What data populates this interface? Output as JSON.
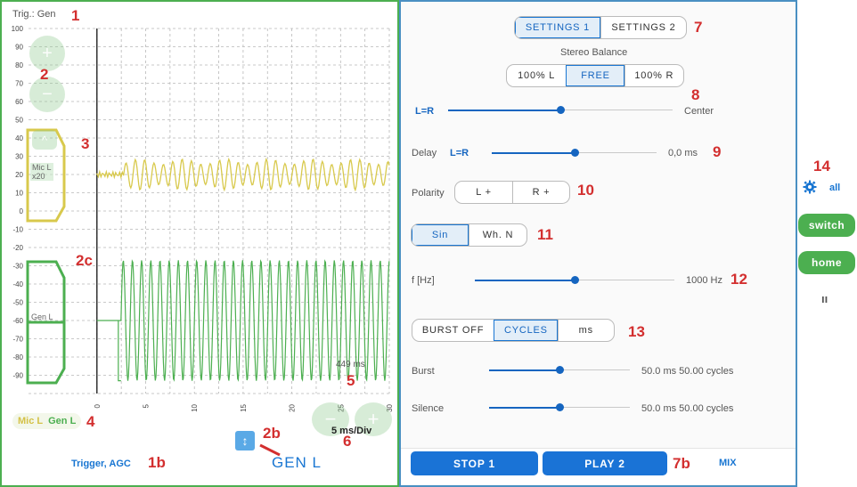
{
  "scope": {
    "trigger_label": "Trig.: Gen",
    "y_ticks": [
      "100",
      "90",
      "80",
      "70",
      "60",
      "50",
      "40",
      "30",
      "20",
      "10",
      "0",
      "-10",
      "-20",
      "-30",
      "-40",
      "-50",
      "-60",
      "-70",
      "-80",
      "-90"
    ],
    "x_ticks": [
      "0",
      "5",
      "10",
      "15",
      "20",
      "25",
      "30"
    ],
    "zoom_plus": "+",
    "zoom_minus": "−",
    "ch1_up": "^",
    "mic_tag_line1": "Mic L",
    "mic_tag_line2": "x20",
    "gen_tag": "Gen L",
    "time_readout": "449 ms",
    "timebase_minus": "−",
    "timebase_plus": "+",
    "timebase_label": "5 ms/Div",
    "legend_mic": "Mic L",
    "legend_gen": "Gen L",
    "vscale_icon": "↕",
    "channel_label": "GEN L",
    "trigger_link": "Trigger, AGC",
    "colors": {
      "mic": "#d8c94c",
      "gen": "#4caf50",
      "grid": "#b8b8b8"
    }
  },
  "settings": {
    "tabs": [
      {
        "label": "SETTINGS 1",
        "active": true
      },
      {
        "label": "SETTINGS 2",
        "active": false
      }
    ],
    "stereo_balance_title": "Stereo Balance",
    "balance_options": [
      {
        "label": "100% L",
        "active": false
      },
      {
        "label": "FREE",
        "active": true
      },
      {
        "label": "100% R",
        "active": false
      }
    ],
    "balance_slider": {
      "left_label": "L=R",
      "value_label": "Center",
      "position": 0.5
    },
    "delay": {
      "label": "Delay",
      "mode": "L=R",
      "value": "0,0 ms",
      "position": 0.45
    },
    "polarity": {
      "label": "Polarity",
      "options": [
        "L +",
        "R +"
      ]
    },
    "waveform_options": [
      {
        "label": "Sin",
        "active": true
      },
      {
        "label": "Wh. N",
        "active": false
      }
    ],
    "frequency": {
      "label": "f [Hz]",
      "value": "1000 Hz",
      "position": 0.5
    },
    "burst_modes": [
      {
        "label": "BURST OFF",
        "active": false
      },
      {
        "label": "CYCLES",
        "active": true
      },
      {
        "label": "ms",
        "active": false
      }
    ],
    "burst": {
      "label": "Burst",
      "value": "50.0 ms 50.00 cycles",
      "position": 0.5
    },
    "silence": {
      "label": "Silence",
      "value": "50.0 ms 50.00 cycles",
      "position": 0.5
    },
    "stop_label": "STOP 1",
    "play_label": "PLAY 2",
    "mix_label": "MIX"
  },
  "rail": {
    "gear_icon": "gear-icon",
    "all_label": "all",
    "switch_label": "switch",
    "home_label": "home",
    "pause_icon": "ıı"
  },
  "annotations": [
    "1",
    "2",
    "3",
    "2c",
    "4",
    "1b",
    "2b",
    "5",
    "6",
    "7",
    "7b",
    "8",
    "9",
    "10",
    "11",
    "12",
    "13",
    "14"
  ]
}
